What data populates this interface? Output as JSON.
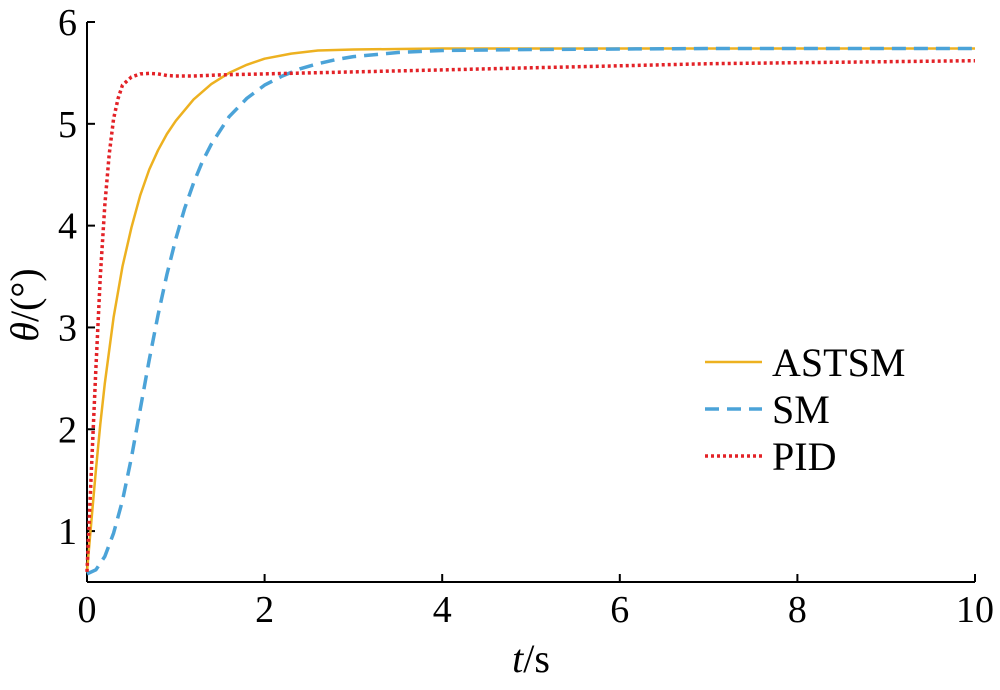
{
  "chart_data": {
    "type": "line",
    "title": "",
    "xlabel": {
      "var": "t",
      "unit": "/s"
    },
    "ylabel": {
      "var": "θ",
      "unit": "/(°)"
    },
    "xlim": [
      0,
      10
    ],
    "ylim": [
      0.5,
      6
    ],
    "xticks": [
      0,
      2,
      4,
      6,
      8,
      10
    ],
    "yticks": [
      1,
      2,
      3,
      4,
      5,
      6
    ],
    "grid": false,
    "legend_position": "right",
    "series": [
      {
        "name": "ASTSM",
        "color": "#EDB120",
        "dash": "solid",
        "x": [
          0.0,
          0.05,
          0.1,
          0.15,
          0.2,
          0.3,
          0.4,
          0.5,
          0.6,
          0.7,
          0.8,
          0.9,
          1.0,
          1.2,
          1.4,
          1.6,
          1.8,
          2.0,
          2.3,
          2.6,
          3.0,
          3.5,
          4.0,
          5.0,
          6.0,
          7.0,
          8.0,
          9.0,
          10.0
        ],
        "y": [
          0.6,
          1.1,
          1.6,
          2.05,
          2.45,
          3.1,
          3.6,
          3.98,
          4.3,
          4.55,
          4.74,
          4.9,
          5.03,
          5.24,
          5.39,
          5.5,
          5.58,
          5.64,
          5.69,
          5.72,
          5.73,
          5.735,
          5.74,
          5.74,
          5.74,
          5.74,
          5.74,
          5.74,
          5.74
        ]
      },
      {
        "name": "SM",
        "color": "#4BA3D8",
        "dash": "dashed",
        "x": [
          0.0,
          0.1,
          0.2,
          0.3,
          0.4,
          0.5,
          0.6,
          0.7,
          0.8,
          0.9,
          1.0,
          1.1,
          1.2,
          1.3,
          1.4,
          1.6,
          1.8,
          2.0,
          2.2,
          2.4,
          2.6,
          2.8,
          3.0,
          3.5,
          4.0,
          5.0,
          6.0,
          7.0,
          8.0,
          9.0,
          10.0
        ],
        "y": [
          0.58,
          0.62,
          0.75,
          0.98,
          1.3,
          1.72,
          2.2,
          2.68,
          3.12,
          3.52,
          3.87,
          4.17,
          4.42,
          4.63,
          4.8,
          5.07,
          5.25,
          5.38,
          5.47,
          5.54,
          5.59,
          5.63,
          5.66,
          5.7,
          5.72,
          5.73,
          5.735,
          5.74,
          5.74,
          5.74,
          5.74
        ]
      },
      {
        "name": "PID",
        "color": "#E32227",
        "dash": "dotted",
        "x": [
          0.0,
          0.05,
          0.1,
          0.15,
          0.2,
          0.25,
          0.3,
          0.35,
          0.4,
          0.5,
          0.6,
          0.7,
          0.8,
          0.9,
          1.0,
          1.2,
          1.5,
          2.0,
          3.0,
          4.0,
          5.0,
          6.0,
          7.0,
          8.0,
          9.0,
          10.0
        ],
        "y": [
          0.6,
          1.6,
          2.6,
          3.5,
          4.2,
          4.7,
          5.05,
          5.25,
          5.38,
          5.46,
          5.49,
          5.495,
          5.49,
          5.475,
          5.47,
          5.47,
          5.48,
          5.49,
          5.51,
          5.53,
          5.55,
          5.57,
          5.59,
          5.6,
          5.61,
          5.62
        ]
      }
    ]
  }
}
